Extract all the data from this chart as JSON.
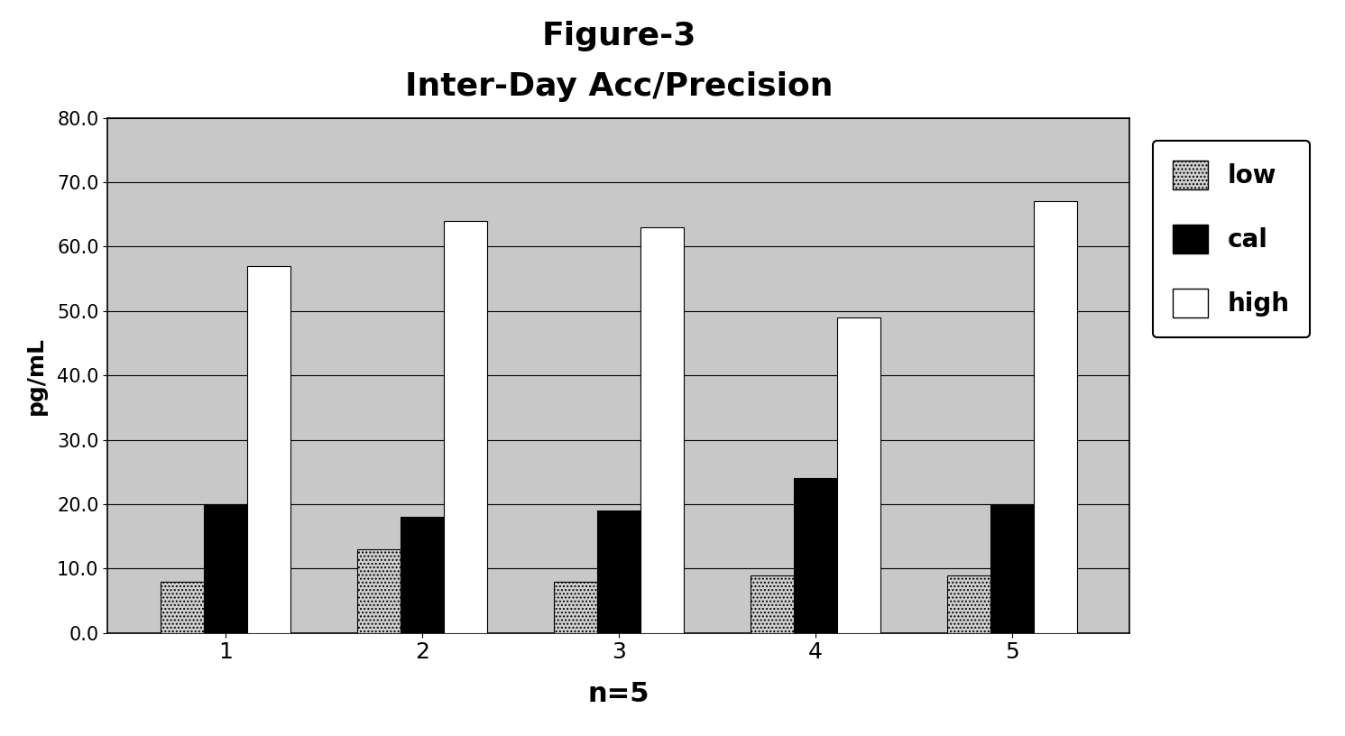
{
  "title_line1": "Figure-3",
  "title_line2": "Inter-Day Acc/Precision",
  "xlabel": "n=5",
  "ylabel": "pg/mL",
  "categories": [
    1,
    2,
    3,
    4,
    5
  ],
  "low": [
    8.0,
    13.0,
    8.0,
    9.0,
    9.0
  ],
  "cal": [
    20.0,
    18.0,
    19.0,
    24.0,
    20.0
  ],
  "high": [
    57.0,
    64.0,
    63.0,
    49.0,
    67.0
  ],
  "ylim": [
    0.0,
    80.0
  ],
  "yticks": [
    0.0,
    10.0,
    20.0,
    30.0,
    40.0,
    50.0,
    60.0,
    70.0,
    80.0
  ],
  "bar_width": 0.22,
  "low_hatch": "....",
  "low_color": "#d0d0d0",
  "cal_color": "#000000",
  "high_color": "#ffffff",
  "bg_color": "#c8c8c8",
  "fig_bg_color": "#ffffff",
  "legend_labels": [
    "low",
    "cal",
    "high"
  ],
  "title_fontsize": 26,
  "subtitle_fontsize": 24,
  "axis_label_fontsize": 18,
  "tick_fontsize": 15,
  "legend_fontsize": 20
}
